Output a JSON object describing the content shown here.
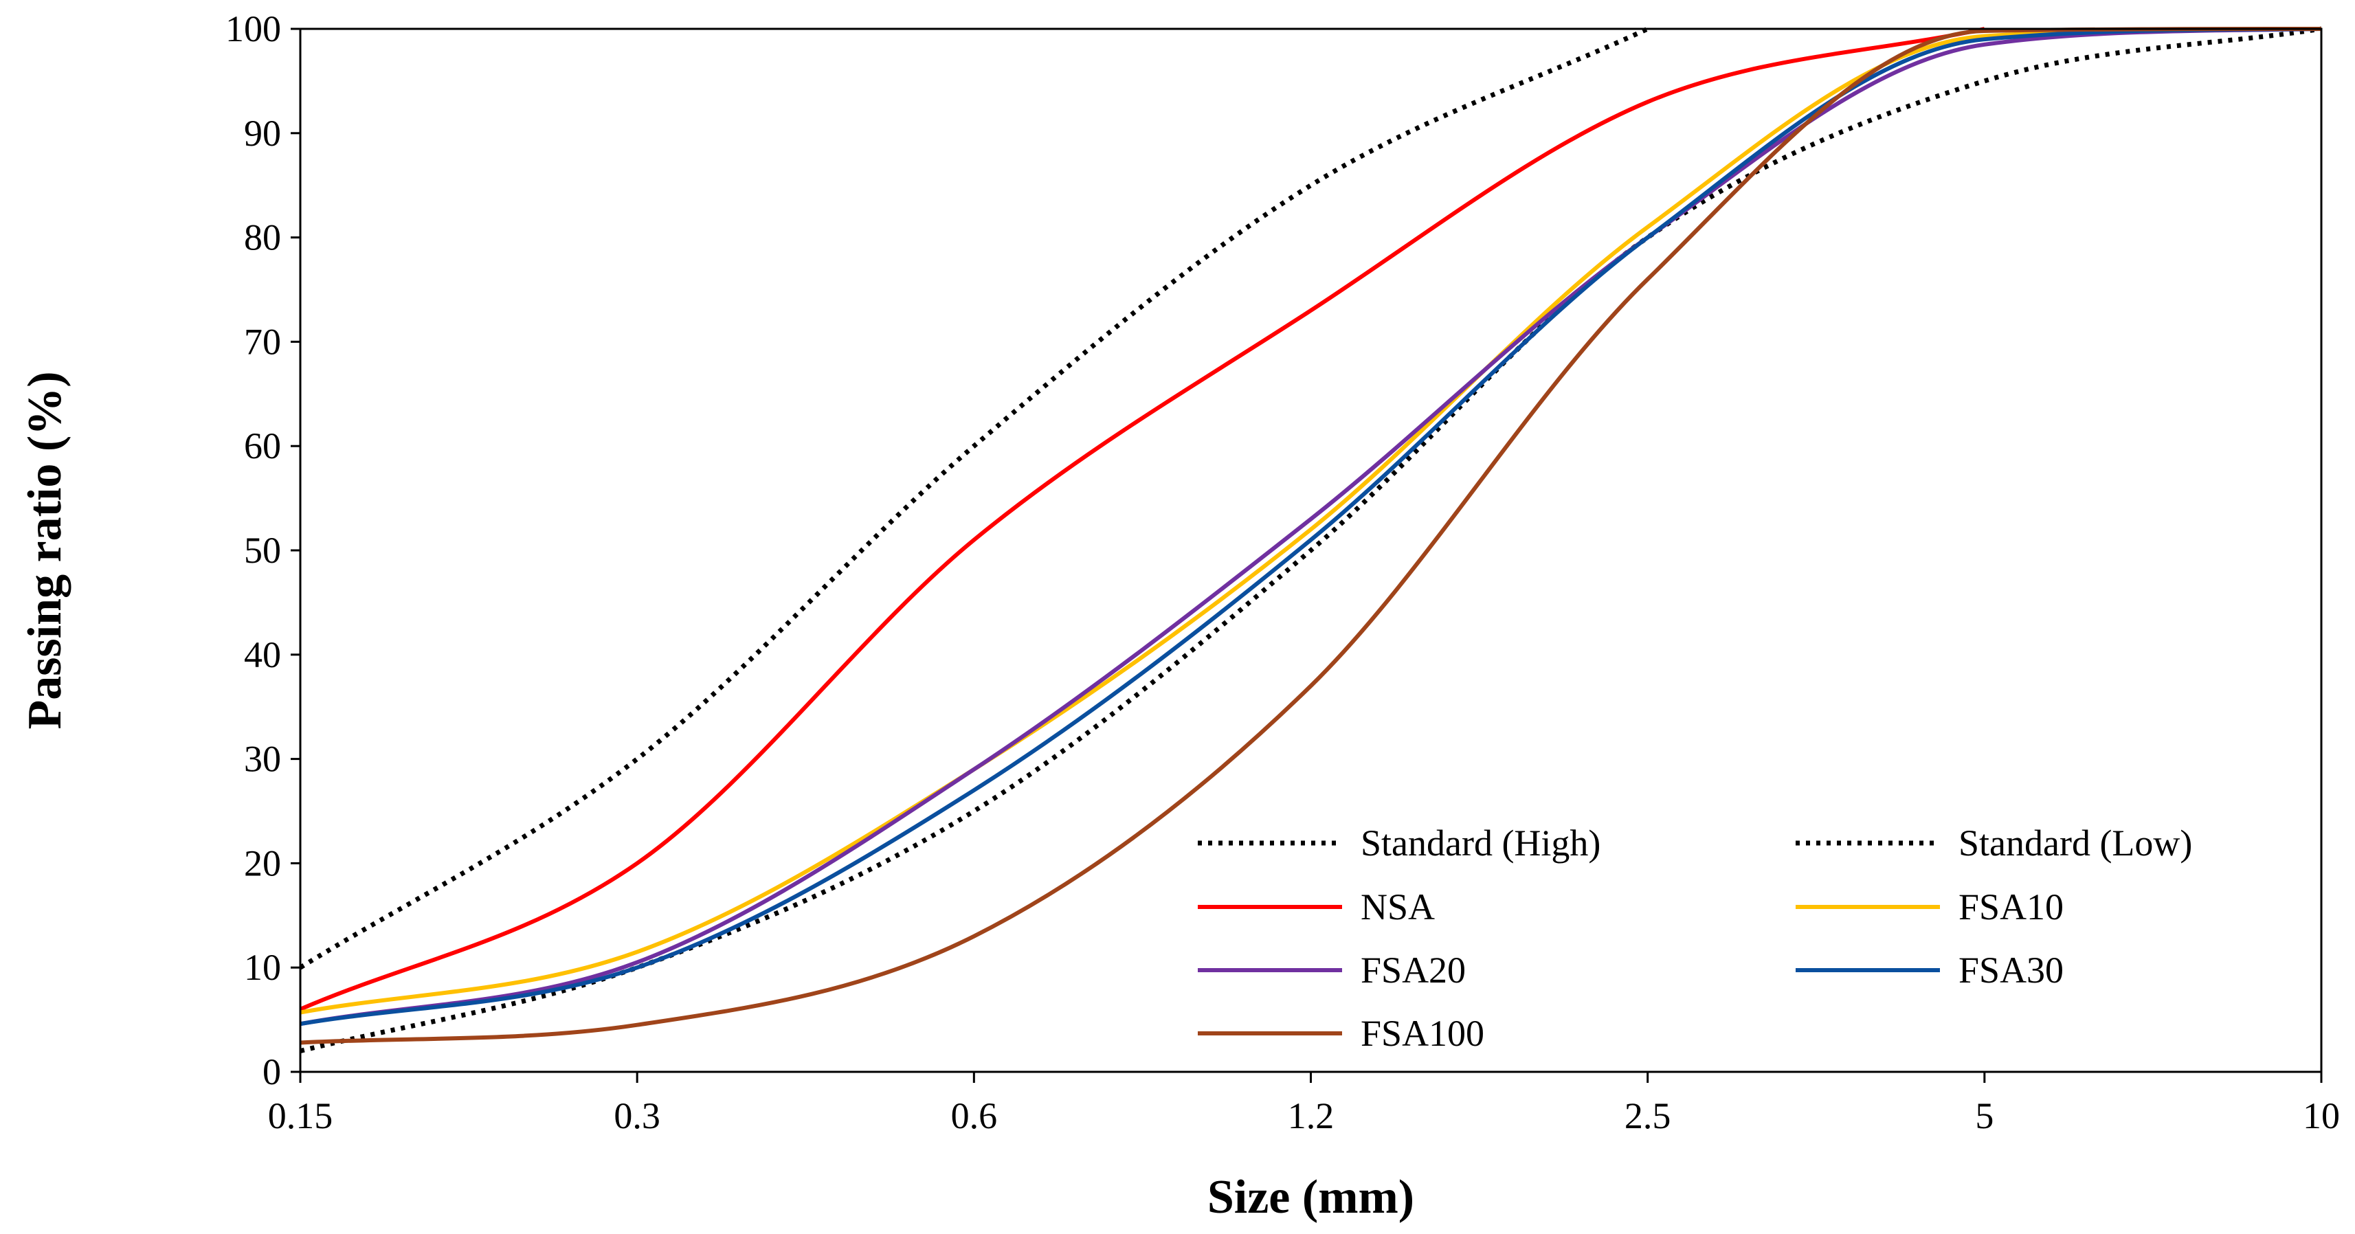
{
  "chart_data": {
    "type": "line",
    "xlabel": "Size (mm)",
    "ylabel": "Passing ratio (%)",
    "x_scale": "sieve-categorical",
    "x_ticks": [
      "0.15",
      "0.3",
      "0.6",
      "1.2",
      "2.5",
      "5",
      "10"
    ],
    "y_ticks": [
      "0",
      "10",
      "20",
      "30",
      "40",
      "50",
      "60",
      "70",
      "80",
      "90",
      "100"
    ],
    "ylim": [
      0,
      100
    ],
    "grid": false,
    "legend_position": "bottom-right",
    "series": [
      {
        "name": "Standard (High)",
        "color": "#000000",
        "style": "dotted",
        "x": [
          0,
          1,
          2,
          3,
          4
        ],
        "values": [
          10,
          30,
          60,
          85,
          100
        ]
      },
      {
        "name": "Standard (Low)",
        "color": "#000000",
        "style": "dotted",
        "x": [
          0,
          1,
          2,
          3,
          4,
          5,
          6
        ],
        "values": [
          2,
          10,
          25,
          50,
          80,
          95,
          100
        ]
      },
      {
        "name": "NSA",
        "color": "#ff0000",
        "style": "solid",
        "x": [
          0,
          1,
          2,
          3,
          4,
          5
        ],
        "values": [
          6,
          20,
          51,
          73,
          93,
          100
        ]
      },
      {
        "name": "FSA10",
        "color": "#ffc000",
        "style": "solid",
        "x": [
          0,
          1,
          2,
          3,
          4,
          5,
          6
        ],
        "values": [
          5.7,
          11.5,
          29,
          52,
          81,
          99.3,
          100
        ]
      },
      {
        "name": "FSA20",
        "color": "#7030a0",
        "style": "solid",
        "x": [
          0,
          1,
          2,
          3,
          4,
          5,
          6
        ],
        "values": [
          4.6,
          10.5,
          29,
          53,
          80,
          98.5,
          100
        ]
      },
      {
        "name": "FSA30",
        "color": "#0a4f9e",
        "style": "solid",
        "x": [
          0,
          1,
          2,
          3,
          4,
          5,
          6
        ],
        "values": [
          4.6,
          10,
          27,
          51,
          80,
          99,
          100
        ]
      },
      {
        "name": "FSA100",
        "color": "#a0441a",
        "style": "solid",
        "x": [
          0,
          1,
          2,
          3,
          4,
          5,
          6
        ],
        "values": [
          2.8,
          4.5,
          13,
          37,
          76,
          99.8,
          100
        ]
      }
    ]
  }
}
